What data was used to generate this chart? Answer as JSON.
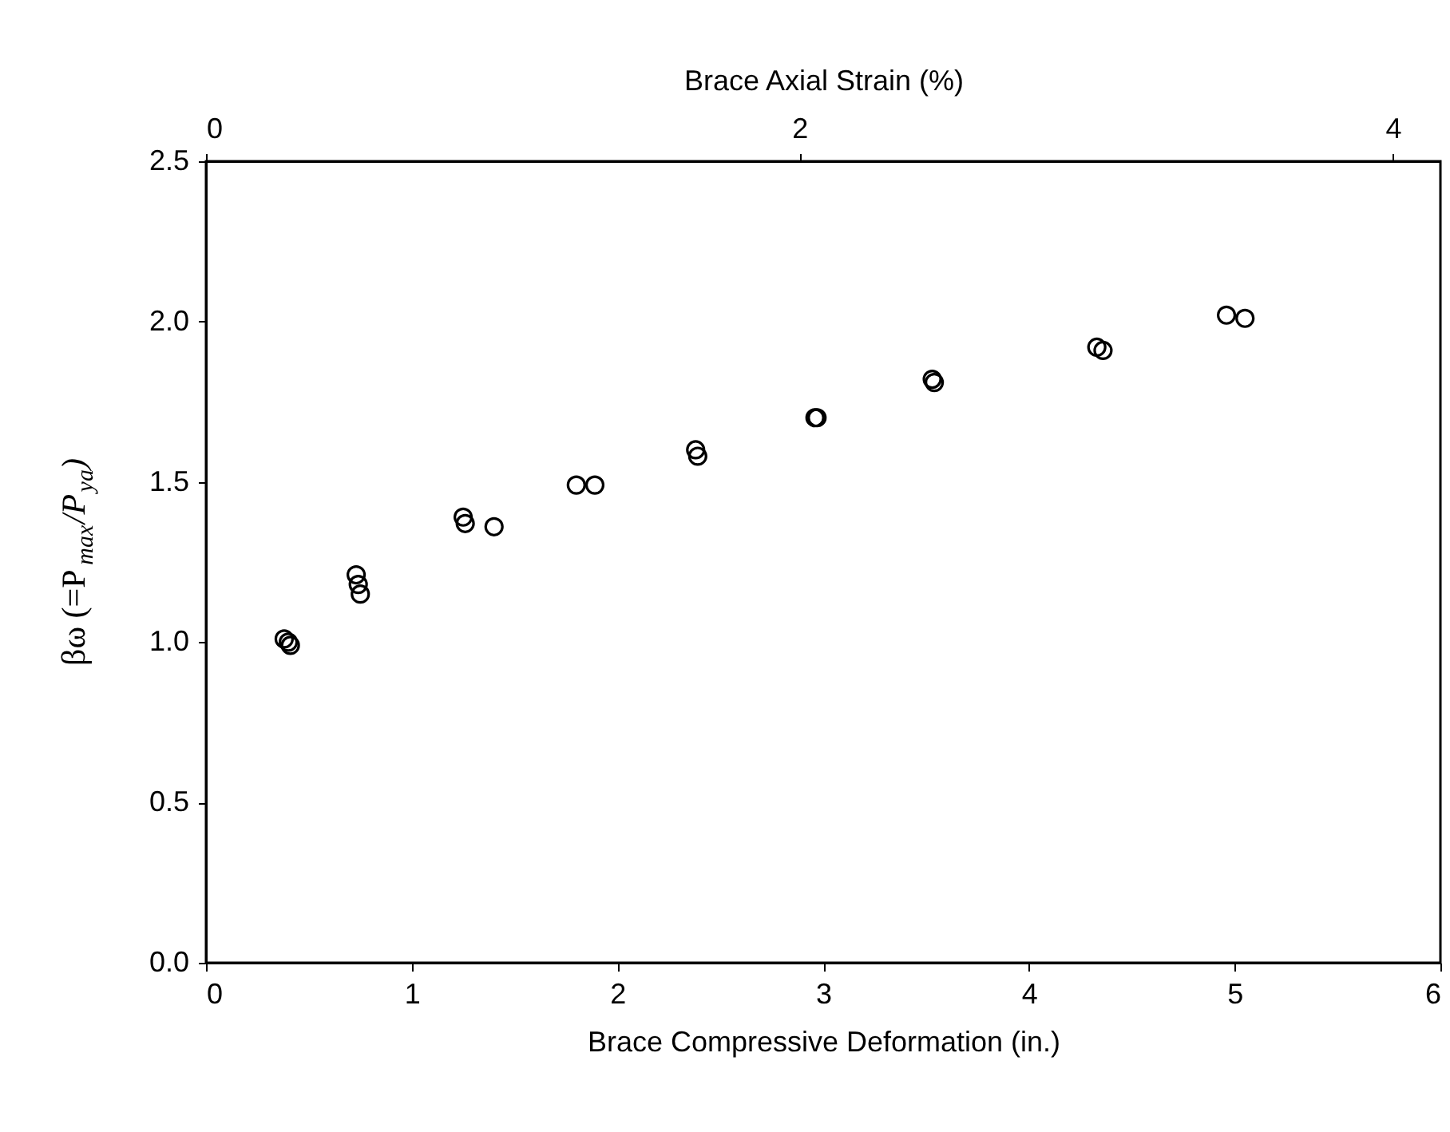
{
  "chart_data": {
    "type": "scatter",
    "xlabel": "Brace Compressive Deformation (in.)",
    "ylabel": "βω (=P$_{max}$/P$_{ya}$)",
    "x2label": "Brace Axial Strain (%)",
    "x": [
      0.38,
      0.4,
      0.41,
      0.73,
      0.74,
      0.75,
      1.25,
      1.26,
      1.4,
      1.8,
      1.89,
      2.38,
      2.39,
      2.96,
      2.97,
      3.53,
      3.54,
      4.33,
      4.36,
      4.96,
      5.05
    ],
    "series": [
      {
        "color": "#000000",
        "values": [
          1.01,
          1.0,
          0.99,
          1.21,
          1.18,
          1.15,
          1.39,
          1.37,
          1.36,
          1.49,
          1.49,
          1.6,
          1.58,
          1.7,
          1.7,
          1.82,
          1.81,
          1.92,
          1.91,
          2.02,
          2.01
        ]
      }
    ],
    "xlim": [
      0,
      6
    ],
    "xticks": [
      0,
      1,
      2,
      3,
      4,
      5,
      6
    ],
    "ylim": [
      0,
      2.5
    ],
    "yticks": [
      {
        "value": 0,
        "label": "0.0"
      },
      {
        "value": 0.5,
        "label": "0.5"
      },
      {
        "value": 1,
        "label": "1.0"
      },
      {
        "value": 1.5,
        "label": "1.5"
      },
      {
        "value": 2,
        "label": "2.0"
      },
      {
        "value": 2.5,
        "label": "2.5"
      }
    ],
    "x2lim": [
      0,
      4.16
    ],
    "x2ticks": [
      0,
      2,
      4
    ],
    "marker": "circle",
    "grid": false
  }
}
